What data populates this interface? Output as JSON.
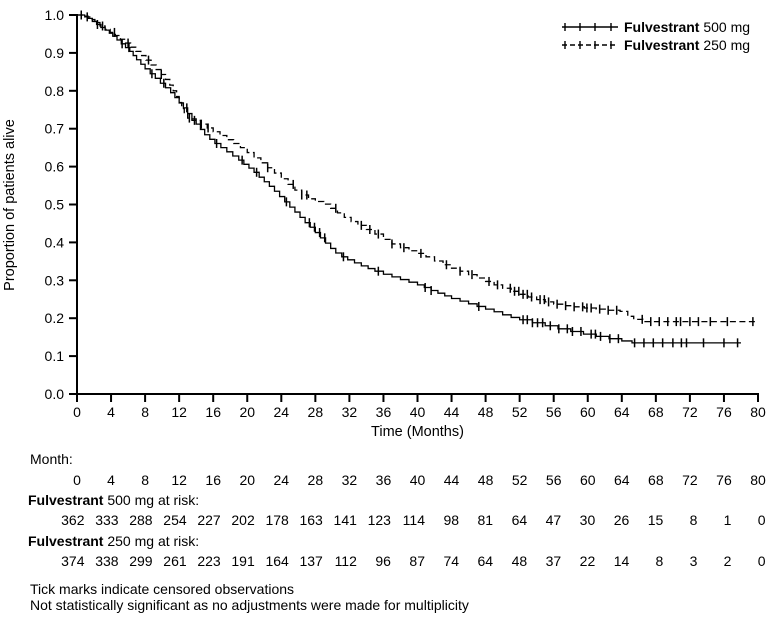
{
  "colors": {
    "foreground": "#000000",
    "background": "#ffffff"
  },
  "chart_data": {
    "type": "line",
    "subtype": "kaplan-meier-step",
    "title": "",
    "xlabel": "Time (Months)",
    "ylabel": "Proportion of patients alive",
    "xlim": [
      0,
      80
    ],
    "ylim": [
      0.0,
      1.0
    ],
    "xticks": [
      0,
      4,
      8,
      12,
      16,
      20,
      24,
      28,
      32,
      36,
      40,
      44,
      48,
      52,
      56,
      60,
      64,
      68,
      72,
      76,
      80
    ],
    "yticks": [
      "0.0",
      "0.1",
      "0.2",
      "0.3",
      "0.4",
      "0.5",
      "0.6",
      "0.7",
      "0.8",
      "0.9",
      "1.0"
    ],
    "grid": false,
    "legend_position": "top-right",
    "series": [
      {
        "name": "Fulvestrant 500 mg",
        "name_bold": "Fulvestrant",
        "name_rest": " 500 mg",
        "line_style": "solid",
        "color": "#000000",
        "end_month": 78,
        "steps": [
          [
            0,
            1.0
          ],
          [
            0.9,
            0.997
          ],
          [
            1.3,
            0.991
          ],
          [
            1.8,
            0.983
          ],
          [
            2.3,
            0.975
          ],
          [
            2.8,
            0.967
          ],
          [
            3.3,
            0.96
          ],
          [
            3.8,
            0.952
          ],
          [
            4.2,
            0.944
          ],
          [
            4.7,
            0.934
          ],
          [
            5.2,
            0.924
          ],
          [
            5.7,
            0.914
          ],
          [
            6.2,
            0.904
          ],
          [
            6.6,
            0.893
          ],
          [
            7.0,
            0.882
          ],
          [
            7.5,
            0.87
          ],
          [
            8.0,
            0.858
          ],
          [
            8.6,
            0.845
          ],
          [
            9.2,
            0.833
          ],
          [
            9.8,
            0.82
          ],
          [
            10.4,
            0.808
          ],
          [
            11.0,
            0.795
          ],
          [
            11.5,
            0.782
          ],
          [
            12.0,
            0.768
          ],
          [
            12.5,
            0.755
          ],
          [
            13.0,
            0.74
          ],
          [
            13.5,
            0.726
          ],
          [
            14.0,
            0.712
          ],
          [
            14.5,
            0.698
          ],
          [
            15.0,
            0.684
          ],
          [
            15.6,
            0.672
          ],
          [
            16.2,
            0.661
          ],
          [
            16.9,
            0.65
          ],
          [
            17.6,
            0.639
          ],
          [
            18.3,
            0.628
          ],
          [
            19.0,
            0.617
          ],
          [
            19.6,
            0.606
          ],
          [
            20.2,
            0.596
          ],
          [
            20.8,
            0.585
          ],
          [
            21.4,
            0.572
          ],
          [
            22.0,
            0.56
          ],
          [
            22.6,
            0.548
          ],
          [
            23.2,
            0.535
          ],
          [
            23.8,
            0.521
          ],
          [
            24.4,
            0.507
          ],
          [
            25.0,
            0.493
          ],
          [
            25.6,
            0.48
          ],
          [
            26.2,
            0.466
          ],
          [
            26.8,
            0.452
          ],
          [
            27.4,
            0.44
          ],
          [
            28.0,
            0.426
          ],
          [
            28.6,
            0.412
          ],
          [
            29.2,
            0.398
          ],
          [
            29.8,
            0.384
          ],
          [
            30.4,
            0.372
          ],
          [
            31.1,
            0.362
          ],
          [
            31.8,
            0.354
          ],
          [
            32.6,
            0.346
          ],
          [
            33.4,
            0.338
          ],
          [
            34.2,
            0.331
          ],
          [
            35.0,
            0.324
          ],
          [
            36.0,
            0.316
          ],
          [
            37.0,
            0.309
          ],
          [
            38.0,
            0.302
          ],
          [
            39.0,
            0.295
          ],
          [
            40.0,
            0.288
          ],
          [
            40.8,
            0.281
          ],
          [
            41.6,
            0.273
          ],
          [
            42.4,
            0.266
          ],
          [
            43.2,
            0.259
          ],
          [
            44.0,
            0.252
          ],
          [
            45.0,
            0.245
          ],
          [
            46.0,
            0.238
          ],
          [
            47.0,
            0.231
          ],
          [
            48.0,
            0.224
          ],
          [
            49.0,
            0.217
          ],
          [
            50.0,
            0.209
          ],
          [
            51.0,
            0.202
          ],
          [
            52.0,
            0.196
          ],
          [
            53.5,
            0.188
          ],
          [
            55.0,
            0.18
          ],
          [
            56.5,
            0.172
          ],
          [
            58.0,
            0.165
          ],
          [
            59.5,
            0.158
          ],
          [
            61.0,
            0.152
          ],
          [
            62.5,
            0.146
          ],
          [
            64.0,
            0.14
          ],
          [
            65.2,
            0.135
          ]
        ],
        "censor_months": [
          0.5,
          2.4,
          5.3,
          6.1,
          8.8,
          10.2,
          12.9,
          16.4,
          19.4,
          21.1,
          24.6,
          27.3,
          27.9,
          28.5,
          29.1,
          31.3,
          35.4,
          40.9,
          41.6,
          47.2,
          52.4,
          52.9,
          53.5,
          54.1,
          54.7,
          55.6,
          56.6,
          57.6,
          58.2,
          59.2,
          60.4,
          60.9,
          61.5,
          62.6,
          63.6,
          65.5,
          66.6,
          67.7,
          68.8,
          70.0,
          71.0,
          71.6,
          73.6,
          76.0,
          77.6
        ]
      },
      {
        "name": "Fulvestrant 250 mg",
        "name_bold": "Fulvestrant",
        "name_rest": " 250 mg",
        "line_style": "dashed",
        "color": "#000000",
        "end_month": 80,
        "steps": [
          [
            0,
            1.0
          ],
          [
            0.9,
            0.995
          ],
          [
            1.5,
            0.988
          ],
          [
            2.1,
            0.98
          ],
          [
            2.7,
            0.971
          ],
          [
            3.3,
            0.962
          ],
          [
            3.9,
            0.954
          ],
          [
            4.5,
            0.946
          ],
          [
            5.1,
            0.936
          ],
          [
            5.7,
            0.926
          ],
          [
            6.3,
            0.915
          ],
          [
            6.9,
            0.904
          ],
          [
            7.5,
            0.893
          ],
          [
            8.1,
            0.881
          ],
          [
            8.7,
            0.868
          ],
          [
            9.3,
            0.856
          ],
          [
            9.9,
            0.843
          ],
          [
            10.4,
            0.83
          ],
          [
            10.9,
            0.815
          ],
          [
            11.3,
            0.8
          ],
          [
            11.7,
            0.785
          ],
          [
            12.0,
            0.769
          ],
          [
            12.3,
            0.753
          ],
          [
            12.6,
            0.739
          ],
          [
            13.0,
            0.728
          ],
          [
            13.5,
            0.722
          ],
          [
            14.5,
            0.712
          ],
          [
            15.3,
            0.702
          ],
          [
            16.0,
            0.692
          ],
          [
            16.8,
            0.682
          ],
          [
            17.6,
            0.671
          ],
          [
            18.4,
            0.661
          ],
          [
            19.2,
            0.65
          ],
          [
            20.0,
            0.637
          ],
          [
            20.8,
            0.623
          ],
          [
            21.6,
            0.61
          ],
          [
            22.4,
            0.597
          ],
          [
            23.2,
            0.583
          ],
          [
            24.0,
            0.568
          ],
          [
            24.8,
            0.553
          ],
          [
            25.6,
            0.538
          ],
          [
            26.4,
            0.525
          ],
          [
            27.2,
            0.515
          ],
          [
            28.0,
            0.508
          ],
          [
            29.0,
            0.501
          ],
          [
            29.8,
            0.49
          ],
          [
            30.6,
            0.478
          ],
          [
            31.4,
            0.466
          ],
          [
            32.2,
            0.455
          ],
          [
            33.0,
            0.445
          ],
          [
            34.0,
            0.434
          ],
          [
            35.0,
            0.422
          ],
          [
            36.0,
            0.408
          ],
          [
            37.0,
            0.396
          ],
          [
            38.0,
            0.386
          ],
          [
            39.0,
            0.378
          ],
          [
            40.0,
            0.371
          ],
          [
            41.0,
            0.362
          ],
          [
            42.0,
            0.351
          ],
          [
            43.0,
            0.341
          ],
          [
            44.0,
            0.332
          ],
          [
            45.0,
            0.324
          ],
          [
            46.0,
            0.315
          ],
          [
            47.0,
            0.306
          ],
          [
            48.0,
            0.297
          ],
          [
            49.0,
            0.288
          ],
          [
            50.0,
            0.279
          ],
          [
            51.0,
            0.271
          ],
          [
            52.0,
            0.263
          ],
          [
            53.0,
            0.256
          ],
          [
            54.0,
            0.249
          ],
          [
            55.0,
            0.243
          ],
          [
            56.0,
            0.237
          ],
          [
            57.2,
            0.233
          ],
          [
            58.4,
            0.23
          ],
          [
            59.6,
            0.227
          ],
          [
            61.0,
            0.224
          ],
          [
            62.4,
            0.221
          ],
          [
            63.8,
            0.218
          ],
          [
            64.7,
            0.205
          ],
          [
            65.4,
            0.197
          ],
          [
            66.5,
            0.191
          ]
        ],
        "censor_months": [
          1.2,
          3.0,
          4.4,
          6.0,
          8.4,
          9.9,
          13.2,
          13.8,
          14.6,
          15.4,
          22.4,
          25.4,
          26.4,
          27.0,
          30.4,
          33.4,
          34.4,
          35.4,
          37.0,
          38.4,
          40.4,
          43.4,
          45.0,
          46.4,
          48.4,
          49.4,
          50.9,
          51.4,
          51.9,
          52.4,
          52.9,
          53.4,
          54.4,
          54.9,
          55.4,
          56.4,
          57.4,
          58.4,
          59.4,
          59.9,
          60.4,
          61.4,
          62.4,
          63.4,
          66.4,
          67.4,
          68.4,
          69.4,
          70.4,
          70.9,
          72.0,
          73.0,
          74.4,
          76.4,
          79.4
        ]
      }
    ]
  },
  "risk_table": {
    "month_label": "Month:",
    "months": [
      0,
      4,
      8,
      12,
      16,
      20,
      24,
      28,
      32,
      36,
      40,
      44,
      48,
      52,
      56,
      60,
      64,
      68,
      72,
      76,
      80
    ],
    "rows": [
      {
        "label_bold": "Fulvestrant",
        "label_rest": " 500 mg at risk:",
        "values": [
          362,
          333,
          288,
          254,
          227,
          202,
          178,
          163,
          141,
          123,
          114,
          98,
          81,
          64,
          47,
          30,
          26,
          15,
          8,
          1,
          0
        ]
      },
      {
        "label_bold": "Fulvestrant",
        "label_rest": " 250 mg at risk:",
        "values": [
          374,
          338,
          299,
          261,
          223,
          191,
          164,
          137,
          112,
          96,
          87,
          74,
          64,
          48,
          37,
          22,
          14,
          8,
          3,
          2,
          0
        ]
      }
    ]
  },
  "footnotes": [
    "Tick marks indicate censored observations",
    "Not statistically significant as no adjustments were made for multiplicity"
  ]
}
